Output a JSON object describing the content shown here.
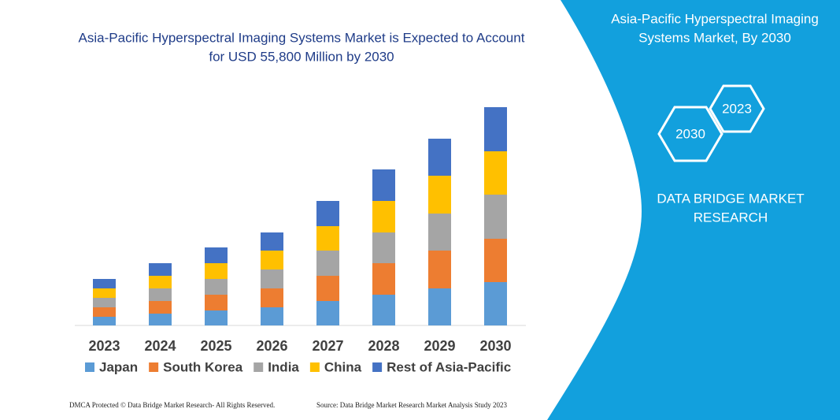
{
  "chart_data": {
    "type": "bar",
    "stacked": true,
    "title": [
      "Asia-Pacific Hyperspectral Imaging Systems Market is Expected to Account",
      "for USD 55,800 Million by 2030"
    ],
    "categories": [
      "2023",
      "2024",
      "2025",
      "2026",
      "2027",
      "2028",
      "2029",
      "2030"
    ],
    "series": [
      {
        "name": "Japan",
        "color": "#5b9bd5",
        "values": [
          11,
          15,
          19,
          23,
          31,
          39,
          47,
          55
        ]
      },
      {
        "name": "South Korea",
        "color": "#ed7d31",
        "values": [
          12,
          16,
          20,
          24,
          32,
          40,
          48,
          55
        ]
      },
      {
        "name": "India",
        "color": "#a5a5a5",
        "values": [
          12,
          16,
          20,
          24,
          32,
          39,
          47,
          56
        ]
      },
      {
        "name": "China",
        "color": "#ffc000",
        "values": [
          12,
          16,
          20,
          24,
          31,
          40,
          48,
          55
        ]
      },
      {
        "name": "Rest of Asia-Pacific",
        "color": "#4472c4",
        "values": [
          12,
          16,
          20,
          23,
          32,
          40,
          47,
          56
        ]
      }
    ],
    "legend": "bottom"
  },
  "panel": {
    "title": [
      "Asia-Pacific Hyperspectral Imaging",
      "Systems Market, By 2030"
    ],
    "hex_labels": [
      "2023",
      "2030"
    ],
    "brand": [
      "DATA BRIDGE MARKET",
      "RESEARCH"
    ]
  },
  "footer": {
    "dmca": "DMCA Protected © Data Bridge Market Research-  All Rights Reserved.",
    "source": "Source: Data Bridge Market Research  Market Analysis Study 2023"
  }
}
